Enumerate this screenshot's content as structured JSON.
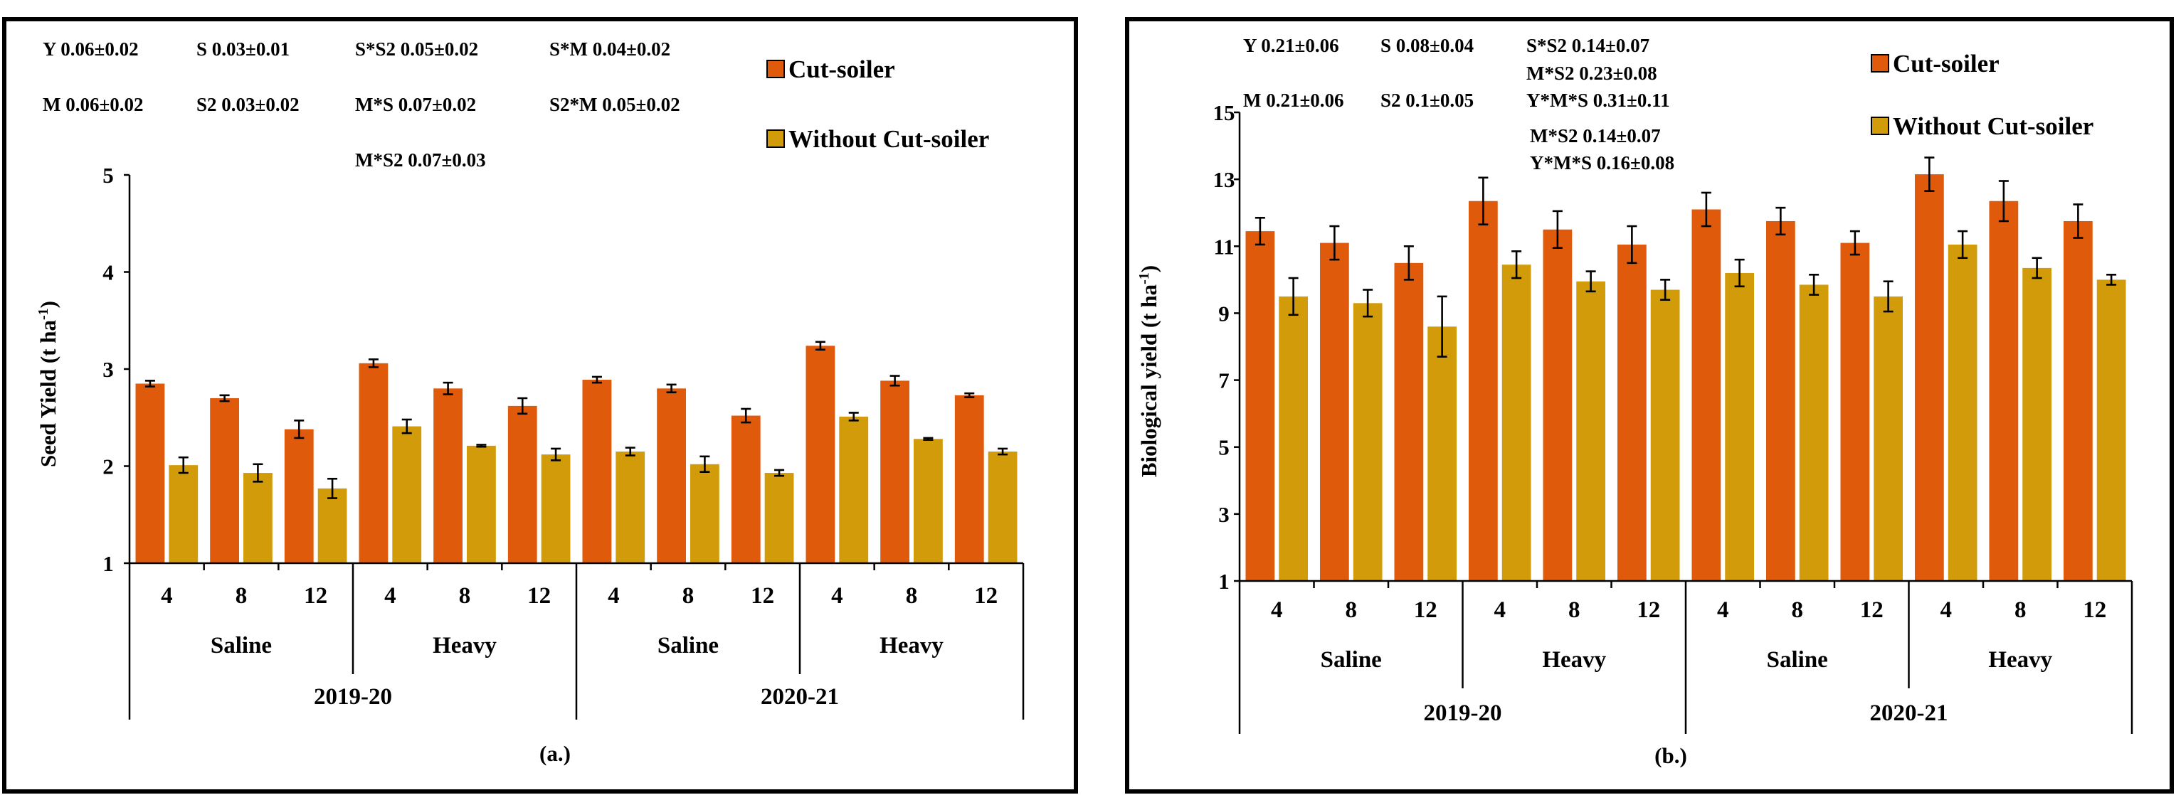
{
  "chart_data": [
    {
      "type": "bar",
      "caption": "(a.)",
      "ylabel": "Seed Yield (t ha",
      "ylabel_sup": "-1",
      "ylabel_end": ")",
      "ylim": [
        1,
        5
      ],
      "yticks": [
        "1",
        "2",
        "3",
        "4",
        "5"
      ],
      "colors": {
        "Cut-soiler": "#E05A0C",
        "Without Cut-soiler": "#D19B0A"
      },
      "legend": [
        "Cut-soiler",
        "Without Cut-soiler"
      ],
      "x_levels": {
        "spacing": [
          "4",
          "8",
          "12",
          "4",
          "8",
          "12",
          "4",
          "8",
          "12",
          "4",
          "8",
          "12"
        ],
        "soil": [
          "Saline",
          "Heavy",
          "Saline",
          "Heavy"
        ],
        "year": [
          "2019-20",
          "2020-21"
        ]
      },
      "series": [
        {
          "name": "Cut-soiler",
          "values": [
            2.85,
            2.7,
            2.38,
            3.06,
            2.8,
            2.62,
            2.89,
            2.8,
            2.52,
            3.24,
            2.88,
            2.73
          ],
          "errors": [
            0.03,
            0.03,
            0.09,
            0.04,
            0.06,
            0.08,
            0.03,
            0.04,
            0.07,
            0.04,
            0.05,
            0.02
          ]
        },
        {
          "name": "Without Cut-soiler",
          "values": [
            2.01,
            1.93,
            1.77,
            2.41,
            2.21,
            2.12,
            2.15,
            2.02,
            1.93,
            2.51,
            2.28,
            2.15
          ],
          "errors": [
            0.08,
            0.09,
            0.1,
            0.07,
            0.01,
            0.06,
            0.04,
            0.08,
            0.03,
            0.04,
            0.01,
            0.03
          ]
        }
      ],
      "stats": [
        "Y 0.06±0.02",
        "S 0.03±0.01",
        "S*S2 0.05±0.02",
        "S*M 0.04±0.02",
        "M 0.06±0.02",
        "S2 0.03±0.02",
        "M*S 0.07±0.02",
        "S2*M 0.05±0.02",
        "M*S2 0.07±0.03"
      ]
    },
    {
      "type": "bar",
      "caption": "(b.)",
      "ylabel": "Biological yield (t ha",
      "ylabel_sup": "-1",
      "ylabel_end": ")",
      "ylim": [
        1,
        15
      ],
      "yticks": [
        "1",
        "3",
        "5",
        "7",
        "9",
        "11",
        "13",
        "15"
      ],
      "colors": {
        "Cut-soiler": "#E05A0C",
        "Without Cut-soiler": "#D19B0A"
      },
      "legend": [
        "Cut-soiler",
        "Without Cut-soiler"
      ],
      "x_levels": {
        "spacing": [
          "4",
          "8",
          "12",
          "4",
          "8",
          "12",
          "4",
          "8",
          "12",
          "4",
          "8",
          "12"
        ],
        "soil": [
          "Saline",
          "Heavy",
          "Saline",
          "Heavy"
        ],
        "year": [
          "2019-20",
          "2020-21"
        ]
      },
      "series": [
        {
          "name": "Cut-soiler",
          "values": [
            11.45,
            11.1,
            10.5,
            12.35,
            11.5,
            11.05,
            12.1,
            11.75,
            11.1,
            13.15,
            12.35,
            11.75
          ],
          "errors": [
            0.4,
            0.5,
            0.5,
            0.7,
            0.55,
            0.55,
            0.5,
            0.4,
            0.35,
            0.5,
            0.6,
            0.5
          ]
        },
        {
          "name": "Without Cut-soiler",
          "values": [
            9.5,
            9.3,
            8.6,
            10.45,
            9.95,
            9.7,
            10.2,
            9.85,
            9.5,
            11.05,
            10.35,
            10.0
          ],
          "errors": [
            0.55,
            0.4,
            0.9,
            0.4,
            0.3,
            0.3,
            0.4,
            0.3,
            0.45,
            0.4,
            0.3,
            0.15
          ]
        }
      ],
      "stats": [
        "Y 0.21±0.06",
        "S 0.08±0.04",
        "S*S2 0.14±0.07",
        "M*S2 0.23±0.08",
        "M 0.21±0.06",
        "S2 0.1±0.05",
        "Y*M*S 0.31±0.11",
        "M*S2 0.14±0.07",
        "Y*M*S 0.16±0.08"
      ]
    }
  ]
}
